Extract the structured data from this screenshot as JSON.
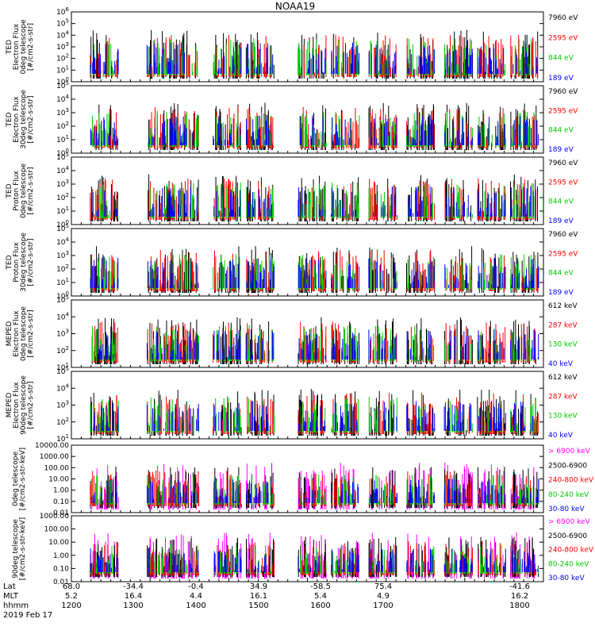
{
  "chart_data": {
    "type": "scatter",
    "title": "NOAA19",
    "date_label": "2019 Feb 17",
    "time_axis": {
      "rows": [
        {
          "name": "Lat",
          "values": [
            "68.0",
            "-34.4",
            "-0.4",
            "34.9",
            "-58.5",
            "75.4",
            "-41.6"
          ]
        },
        {
          "name": "MLT",
          "values": [
            "5.2",
            "16.4",
            "4.4",
            "16.1",
            "5.4",
            "4.9",
            "16.2"
          ]
        },
        {
          "name": "hhmm",
          "values": [
            "1200",
            "1300",
            "1400",
            "1500",
            "1600",
            "1700",
            "1800"
          ]
        }
      ]
    },
    "panels": [
      {
        "ylabel": [
          "TED",
          "Electron Flux",
          "0deg telescope",
          "[#/cm2-s-str]"
        ],
        "scale": "log",
        "ylim": [
          1,
          1000000
        ],
        "yticks": [
          "10^0",
          "10^1",
          "10^2",
          "10^3",
          "10^4",
          "10^5",
          "10^6"
        ],
        "series": [
          {
            "name": "7960 eV",
            "color": "#000000"
          },
          {
            "name": "2595 eV",
            "color": "#ff0000"
          },
          {
            "name": "844 eV",
            "color": "#00cc00"
          },
          {
            "name": "189 eV",
            "color": "#0000ff"
          }
        ]
      },
      {
        "ylabel": [
          "TED",
          "Electron Flux",
          "30deg telescope",
          "[#/cm2-s-str]"
        ],
        "scale": "log",
        "ylim": [
          1,
          100000
        ],
        "yticks": [
          "10^0",
          "10^1",
          "10^2",
          "10^3",
          "10^4",
          "10^5"
        ],
        "series": [
          {
            "name": "7960 eV",
            "color": "#000000"
          },
          {
            "name": "2595 eV",
            "color": "#ff0000"
          },
          {
            "name": "844 eV",
            "color": "#00cc00"
          },
          {
            "name": "189 eV",
            "color": "#0000ff"
          }
        ]
      },
      {
        "ylabel": [
          "TED",
          "Proton Flux",
          "0deg telescope",
          "[#/cm2-s-str]"
        ],
        "scale": "log",
        "ylim": [
          1,
          100000
        ],
        "yticks": [
          "10^0",
          "10^1",
          "10^2",
          "10^3",
          "10^4",
          "10^5"
        ],
        "series": [
          {
            "name": "7960 eV",
            "color": "#000000"
          },
          {
            "name": "2595 eV",
            "color": "#ff0000"
          },
          {
            "name": "844 eV",
            "color": "#00cc00"
          },
          {
            "name": "189 eV",
            "color": "#0000ff"
          }
        ]
      },
      {
        "ylabel": [
          "TED",
          "Proton Flux",
          "30deg telescope",
          "[#/cm2-s-str]"
        ],
        "scale": "log",
        "ylim": [
          1,
          100000
        ],
        "yticks": [
          "10^0",
          "10^1",
          "10^2",
          "10^3",
          "10^4",
          "10^5"
        ],
        "series": [
          {
            "name": "7960 eV",
            "color": "#000000"
          },
          {
            "name": "2595 eV",
            "color": "#ff0000"
          },
          {
            "name": "844 eV",
            "color": "#00cc00"
          },
          {
            "name": "189 eV",
            "color": "#0000ff"
          }
        ]
      },
      {
        "ylabel": [
          "MEPED",
          "Electron Flux",
          "0deg telescope",
          "[#/cm2-s-str]"
        ],
        "scale": "log",
        "ylim": [
          10,
          100000
        ],
        "yticks": [
          "10^1",
          "10^2",
          "10^3",
          "10^4",
          "10^5"
        ],
        "series": [
          {
            "name": "612 keV",
            "color": "#000000"
          },
          {
            "name": "287 keV",
            "color": "#ff0000"
          },
          {
            "name": "130 keV",
            "color": "#00cc00"
          },
          {
            "name": "40 keV",
            "color": "#0000ff"
          }
        ]
      },
      {
        "ylabel": [
          "MEPED",
          "Electron Flux",
          "90deg telescope",
          "[#/cm2-s-str]"
        ],
        "scale": "log",
        "ylim": [
          10,
          100000
        ],
        "yticks": [
          "10^1",
          "10^2",
          "10^3",
          "10^4",
          "10^5"
        ],
        "series": [
          {
            "name": "612 keV",
            "color": "#000000"
          },
          {
            "name": "287 keV",
            "color": "#ff0000"
          },
          {
            "name": "130 keV",
            "color": "#00cc00"
          },
          {
            "name": "40 keV",
            "color": "#0000ff"
          }
        ]
      },
      {
        "ylabel": [
          "0deg telescope",
          "[#/cm2-s-str-keV]"
        ],
        "scale": "log",
        "ylim": [
          0.01,
          10000
        ],
        "yticks": [
          "0.01",
          "0.10",
          "1.00",
          "10.00",
          "100.00",
          "1000.00",
          "10000.00"
        ],
        "series": [
          {
            "name": "> 6900 keV",
            "color": "#ff00ff"
          },
          {
            "name": "2500-6900",
            "color": "#000000"
          },
          {
            "name": "240-800 keV",
            "color": "#ff0000"
          },
          {
            "name": "80-240 keV",
            "color": "#00cc00"
          },
          {
            "name": "30-80 keV",
            "color": "#0000ff"
          }
        ]
      },
      {
        "ylabel": [
          "90deg telescope",
          "[#/cm2-s-str-keV]"
        ],
        "scale": "log",
        "ylim": [
          0.01,
          1000
        ],
        "yticks": [
          "0.01",
          "0.10",
          "1.00",
          "10.00",
          "100.00",
          "1000.00"
        ],
        "series": [
          {
            "name": "> 6900 keV",
            "color": "#ff00ff"
          },
          {
            "name": "2500-6900",
            "color": "#000000"
          },
          {
            "name": "240-800 keV",
            "color": "#ff0000"
          },
          {
            "name": "80-240 keV",
            "color": "#00cc00"
          },
          {
            "name": "30-80 keV",
            "color": "#0000ff"
          }
        ]
      }
    ]
  }
}
